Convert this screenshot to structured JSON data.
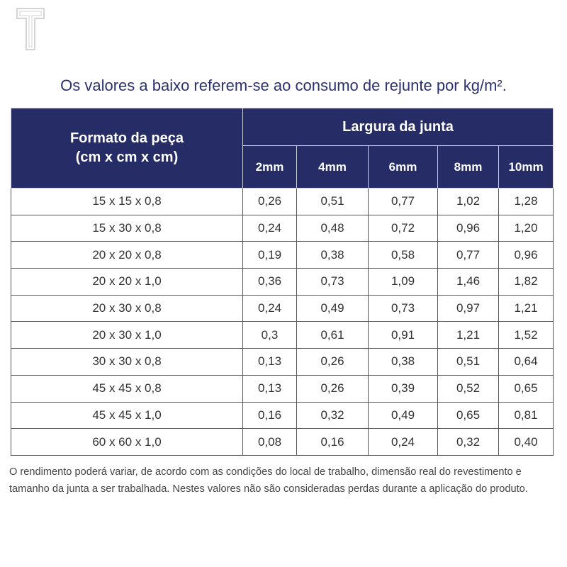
{
  "header": {
    "title": "Os valores a baixo referem-se ao consumo de rejunte por kg/m²."
  },
  "table": {
    "first_column_header": [
      "Formato da peça",
      "(cm x cm x cm)"
    ],
    "group_header": "Largura da junta",
    "columns": [
      "2mm",
      "4mm",
      "6mm",
      "8mm",
      "10mm"
    ],
    "rows": [
      [
        "15 x 15 x 0,8",
        "0,26",
        "0,51",
        "0,77",
        "1,02",
        "1,28"
      ],
      [
        "15 x 30 x 0,8",
        "0,24",
        "0,48",
        "0,72",
        "0,96",
        "1,20"
      ],
      [
        "20 x 20 x 0,8",
        "0,19",
        "0,38",
        "0,58",
        "0,77",
        "0,96"
      ],
      [
        "20 x 20 x 1,0",
        "0,36",
        "0,73",
        "1,09",
        "1,46",
        "1,82"
      ],
      [
        "20 x 30 x 0,8",
        "0,24",
        "0,49",
        "0,73",
        "0,97",
        "1,21"
      ],
      [
        "20 x 30 x 1,0",
        "0,3",
        "0,61",
        "0,91",
        "1,21",
        "1,52"
      ],
      [
        "30 x 30 x 0,8",
        "0,13",
        "0,26",
        "0,38",
        "0,51",
        "0,64"
      ],
      [
        "45 x 45 x 0,8",
        "0,13",
        "0,26",
        "0,39",
        "0,52",
        "0,65"
      ],
      [
        "45 x 45 x 1,0",
        "0,16",
        "0,32",
        "0,49",
        "0,65",
        "0,81"
      ],
      [
        "60 x 60 x 1,0",
        "0,08",
        "0,16",
        "0,24",
        "0,32",
        "0,40"
      ]
    ]
  },
  "footnote": "O rendimento poderá variar, de acordo com as condições do local de trabalho, dimensão real do revestimento e tamanho da junta a ser trabalhada. Nestes valores não são consideradas perdas durante a aplicação do produto."
}
